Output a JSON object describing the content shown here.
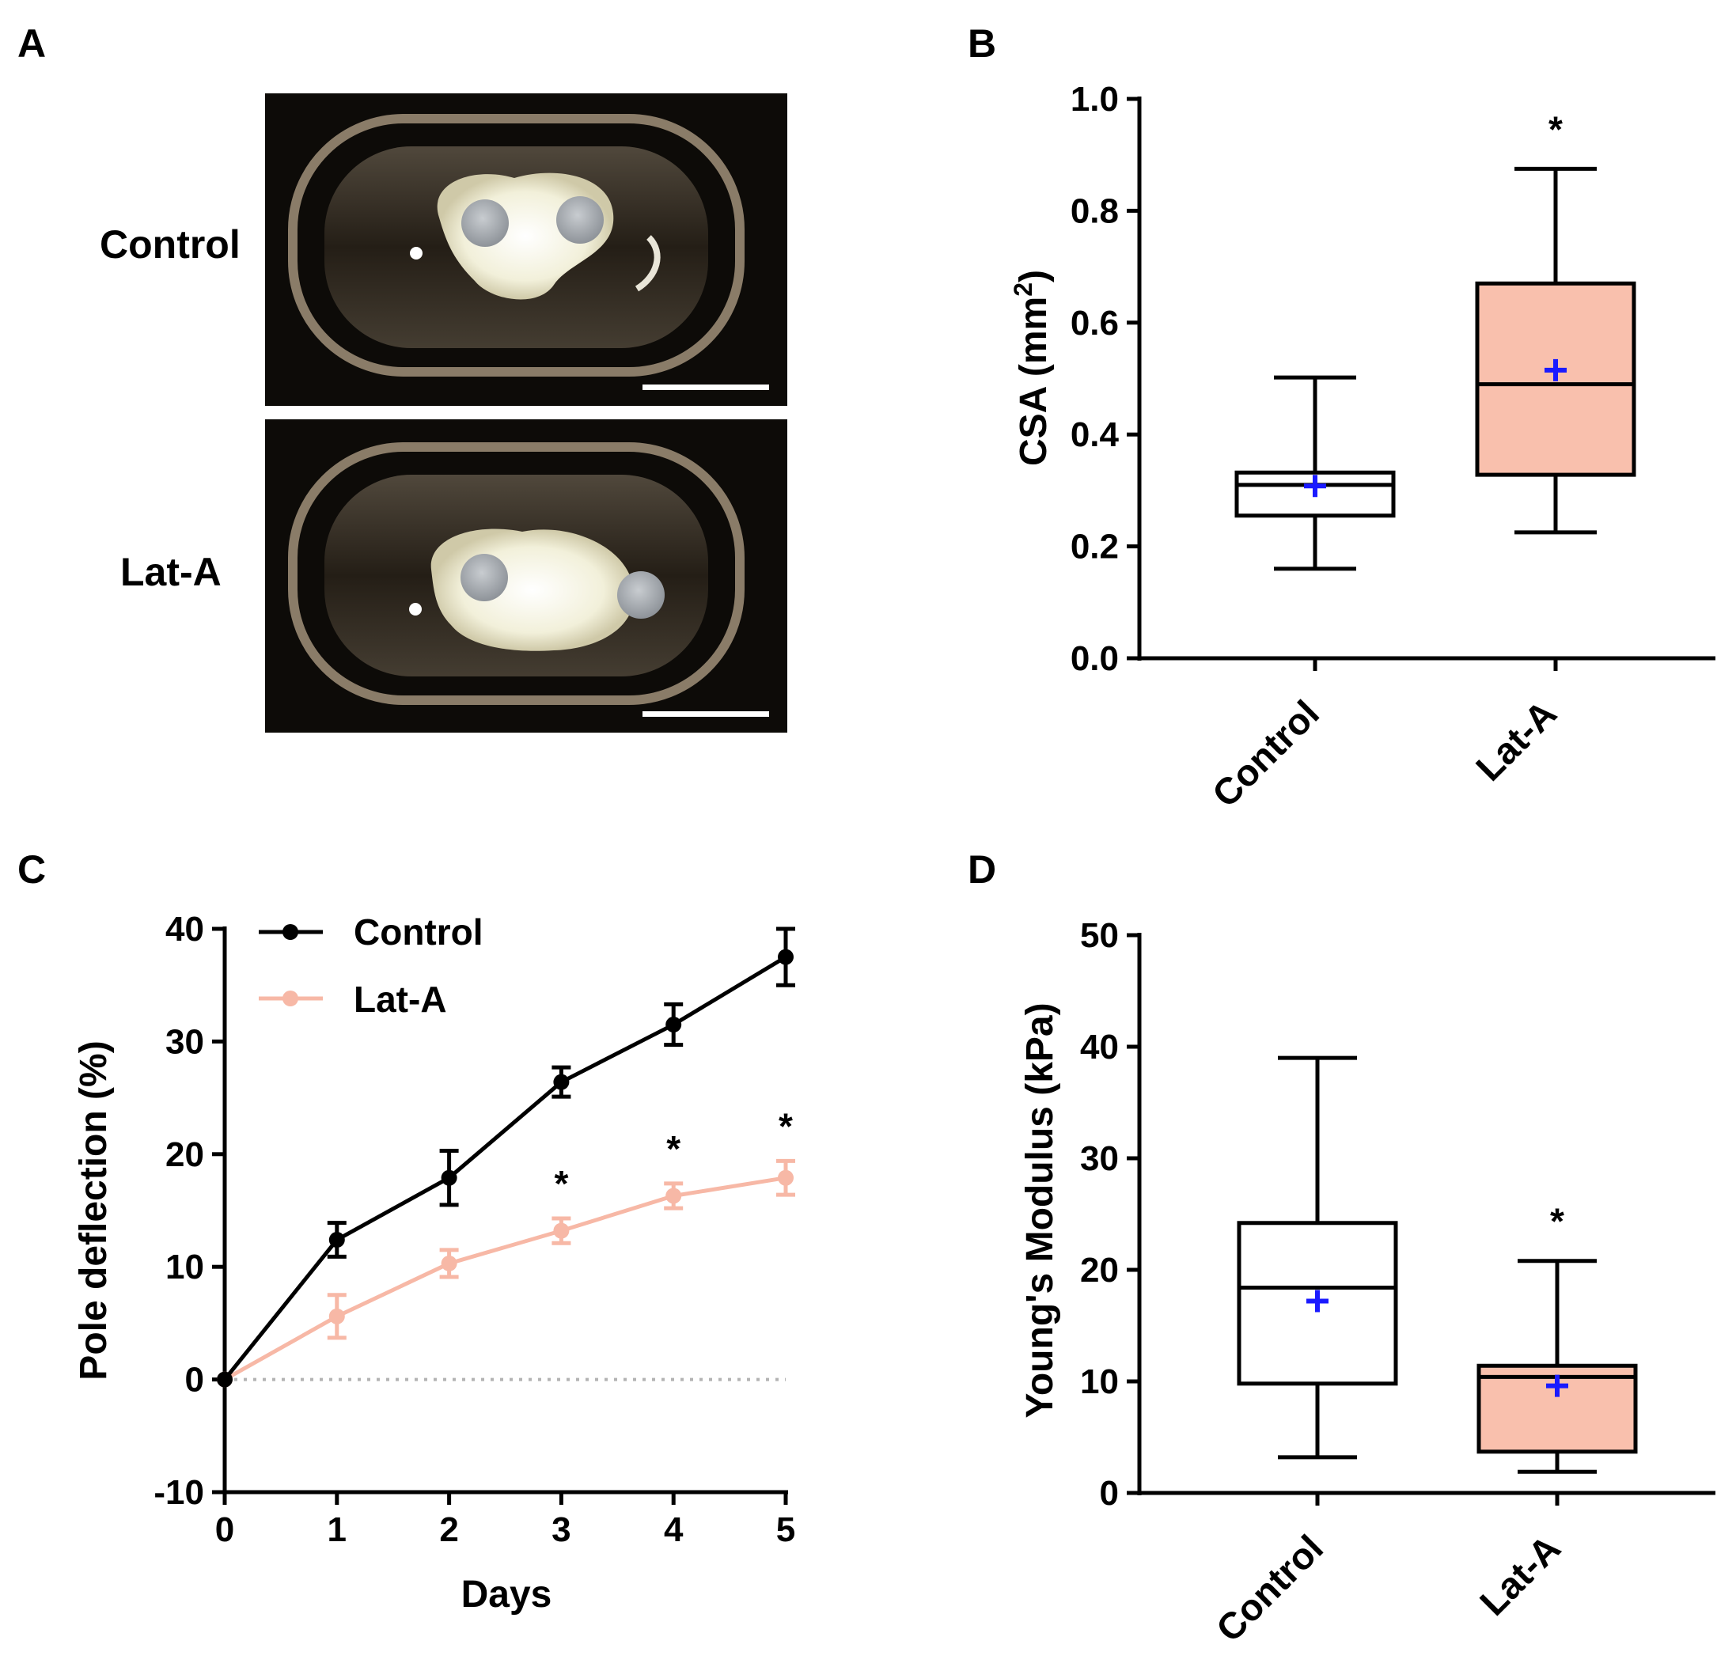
{
  "colors": {
    "control": "#000000",
    "lat_a": "#f7b8a6",
    "lat_a_box_fill": "#f9c0ad",
    "mean_marker": "#1a1aff",
    "zero_line": "#b3b3b3",
    "photo_background": "#0d0b08"
  },
  "panel_a": {
    "letter": "A",
    "images": [
      {
        "label": "Control",
        "icon": "tissue-photo-control"
      },
      {
        "label": "Lat-A",
        "icon": "tissue-photo-lat-a"
      }
    ]
  },
  "chart_data": [
    {
      "panel": "B",
      "type": "box",
      "title": "",
      "ylabel": "CSA (mm",
      "ylabel_sup": "2",
      "ylabel_close": ")",
      "ylim": [
        0,
        1.0
      ],
      "yticks": [
        "0.0",
        "0.2",
        "0.4",
        "0.6",
        "0.8",
        "1.0"
      ],
      "ytick_values": [
        0.0,
        0.2,
        0.4,
        0.6,
        0.8,
        1.0
      ],
      "categories": [
        "Control",
        "Lat-A"
      ],
      "boxes": [
        {
          "name": "Control",
          "min": 0.16,
          "q1": 0.255,
          "median": 0.31,
          "q3": 0.332,
          "max": 0.502,
          "mean": 0.308,
          "significance": ""
        },
        {
          "name": "Lat-A",
          "min": 0.225,
          "q1": 0.328,
          "median": 0.49,
          "q3": 0.67,
          "max": 0.875,
          "mean": 0.515,
          "significance": "*"
        }
      ]
    },
    {
      "panel": "C",
      "type": "line",
      "xlabel": "Days",
      "ylabel": "Pole deflection (%)",
      "ylim": [
        -10,
        40
      ],
      "yticks": [
        "-10",
        "0",
        "10",
        "20",
        "30",
        "40"
      ],
      "ytick_values": [
        -10,
        0,
        10,
        20,
        30,
        40
      ],
      "x": [
        0,
        1,
        2,
        3,
        4,
        5
      ],
      "xticks": [
        "0",
        "1",
        "2",
        "3",
        "4",
        "5"
      ],
      "reference_line": 0,
      "legend": "top-left",
      "series": [
        {
          "name": "Control",
          "values": [
            0,
            12.4,
            17.9,
            26.4,
            31.5,
            37.5
          ],
          "errors": [
            0,
            1.5,
            2.4,
            1.3,
            1.8,
            2.5
          ]
        },
        {
          "name": "Lat-A",
          "values": [
            0,
            5.6,
            10.3,
            13.2,
            16.3,
            17.9
          ],
          "errors": [
            0,
            1.9,
            1.2,
            1.1,
            1.1,
            1.5
          ]
        }
      ],
      "significance": [
        {
          "x": 3,
          "label": "*"
        },
        {
          "x": 4,
          "label": "*"
        },
        {
          "x": 5,
          "label": "*"
        }
      ]
    },
    {
      "panel": "D",
      "type": "box",
      "ylabel": "Young's Modulus (kPa)",
      "ylim": [
        0,
        50
      ],
      "yticks": [
        "0",
        "10",
        "20",
        "30",
        "40",
        "50"
      ],
      "ytick_values": [
        0,
        10,
        20,
        30,
        40,
        50
      ],
      "categories": [
        "Control",
        "Lat-A"
      ],
      "boxes": [
        {
          "name": "Control",
          "min": 3.2,
          "q1": 9.8,
          "median": 18.4,
          "q3": 24.2,
          "max": 39.0,
          "mean": 17.2,
          "significance": ""
        },
        {
          "name": "Lat-A",
          "min": 1.9,
          "q1": 3.7,
          "median": 10.4,
          "q3": 11.4,
          "max": 20.8,
          "mean": 9.6,
          "significance": "*"
        }
      ]
    }
  ]
}
